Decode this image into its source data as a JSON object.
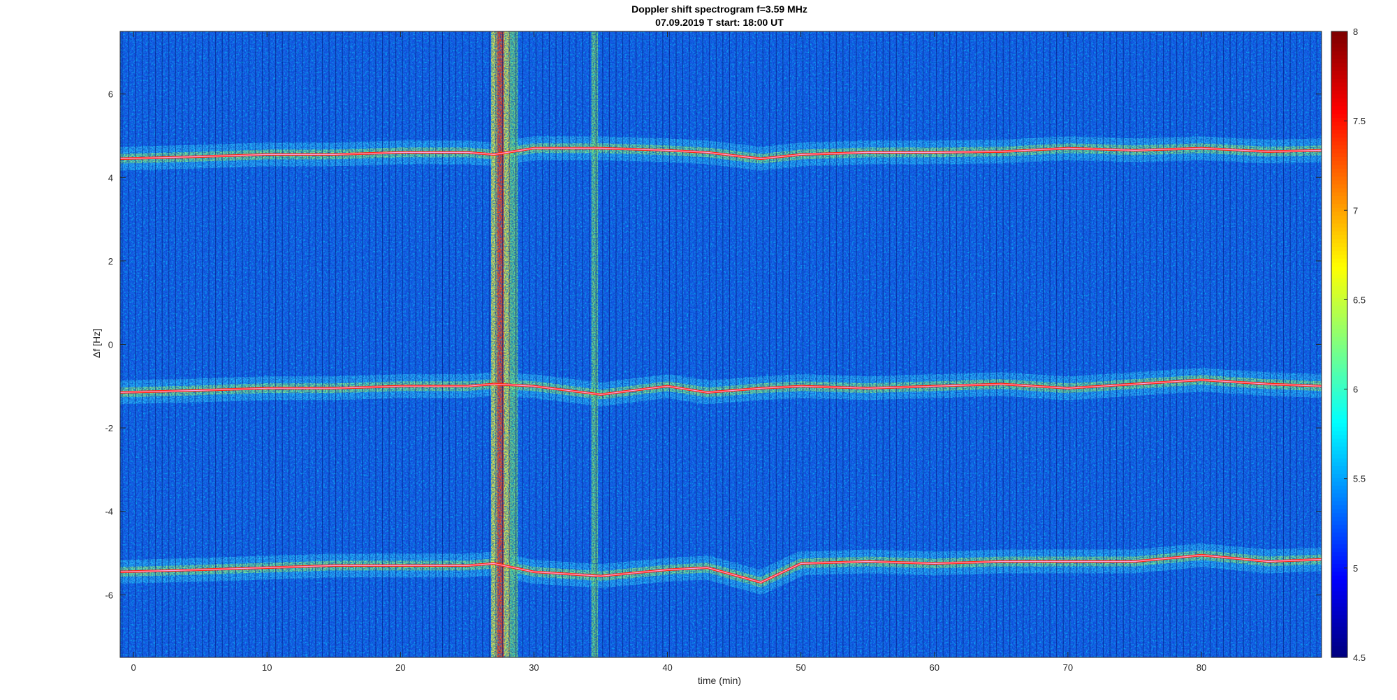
{
  "chart_data": {
    "type": "heatmap",
    "title": "Doppler shift spectrogram f=3.59 MHz",
    "subtitle": "07.09.2019   T start: 18:00 UT",
    "xlabel": "time (min)",
    "ylabel": "Δf [Hz]",
    "xlim": [
      -1,
      89
    ],
    "ylim": [
      -7.5,
      7.5
    ],
    "x_ticks": [
      0,
      10,
      20,
      30,
      40,
      50,
      60,
      70,
      80
    ],
    "y_ticks": [
      -6,
      -4,
      -2,
      0,
      2,
      4,
      6
    ],
    "colormap": "jet",
    "color_range": [
      4.5,
      8
    ],
    "colorbar_ticks": [
      4.5,
      5,
      5.5,
      6,
      6.5,
      7,
      7.5,
      8
    ],
    "traces": [
      {
        "name": "",
        "x": [
          -1,
          5,
          10,
          15,
          20,
          25,
          27,
          30,
          35,
          40,
          43,
          47,
          50,
          55,
          60,
          65,
          70,
          75,
          80,
          85,
          89
        ],
        "y": [
          4.45,
          4.5,
          4.55,
          4.55,
          4.6,
          4.6,
          4.55,
          4.7,
          4.7,
          4.65,
          4.6,
          4.45,
          4.55,
          4.6,
          4.6,
          4.62,
          4.7,
          4.65,
          4.7,
          4.62,
          4.65
        ]
      },
      {
        "name": "",
        "x": [
          -1,
          5,
          10,
          15,
          20,
          25,
          27,
          30,
          35,
          40,
          43,
          47,
          50,
          55,
          60,
          65,
          70,
          75,
          80,
          85,
          89
        ],
        "y": [
          -1.15,
          -1.1,
          -1.05,
          -1.05,
          -1.0,
          -1.0,
          -0.95,
          -1.0,
          -1.2,
          -1.0,
          -1.15,
          -1.05,
          -1.0,
          -1.05,
          -1.0,
          -0.95,
          -1.05,
          -0.95,
          -0.85,
          -0.95,
          -1.0
        ]
      },
      {
        "name": "",
        "x": [
          -1,
          5,
          10,
          15,
          20,
          25,
          27,
          30,
          35,
          40,
          43,
          47,
          50,
          55,
          60,
          65,
          70,
          75,
          80,
          85,
          89
        ],
        "y": [
          -5.45,
          -5.4,
          -5.35,
          -5.3,
          -5.3,
          -5.3,
          -5.25,
          -5.45,
          -5.55,
          -5.4,
          -5.35,
          -5.7,
          -5.25,
          -5.2,
          -5.25,
          -5.2,
          -5.2,
          -5.2,
          -5.05,
          -5.2,
          -5.15
        ]
      }
    ],
    "vertical_disturbances": [
      {
        "x_start": 27.0,
        "x_end": 28.0,
        "level": "high"
      },
      {
        "x_start": 28.2,
        "x_end": 28.8,
        "level": "medium"
      },
      {
        "x_start": 34.3,
        "x_end": 34.8,
        "level": "medium"
      }
    ],
    "grid": false,
    "legend": "none"
  }
}
